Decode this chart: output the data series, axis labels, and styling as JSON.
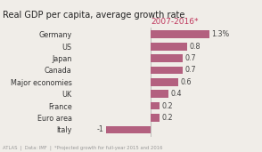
{
  "title": "Real GDP per capita, average growth rate",
  "period_label": "2007-2016*",
  "period_label_color": "#c0395e",
  "categories": [
    "Germany",
    "US",
    "Japan",
    "Canada",
    "Major economies",
    "UK",
    "France",
    "Euro area",
    "Italy"
  ],
  "values": [
    1.3,
    0.8,
    0.7,
    0.7,
    0.6,
    0.4,
    0.2,
    0.2,
    -1.0
  ],
  "bar_color": "#b3607f",
  "bar_labels": [
    "1.3%",
    "0.8",
    "0.7",
    "0.7",
    "0.6",
    "0.4",
    "0.2",
    "0.2",
    "-1"
  ],
  "xlim": [
    -1.6,
    2.0
  ],
  "background_color": "#f0ede8",
  "footer": "ATLAS  |  Data: IMF  |  *Projected growth for full-year 2015 and 2016",
  "title_fontsize": 7.0,
  "label_fontsize": 5.8,
  "bar_label_fontsize": 5.8,
  "period_fontsize": 6.5,
  "footer_fontsize": 3.8
}
